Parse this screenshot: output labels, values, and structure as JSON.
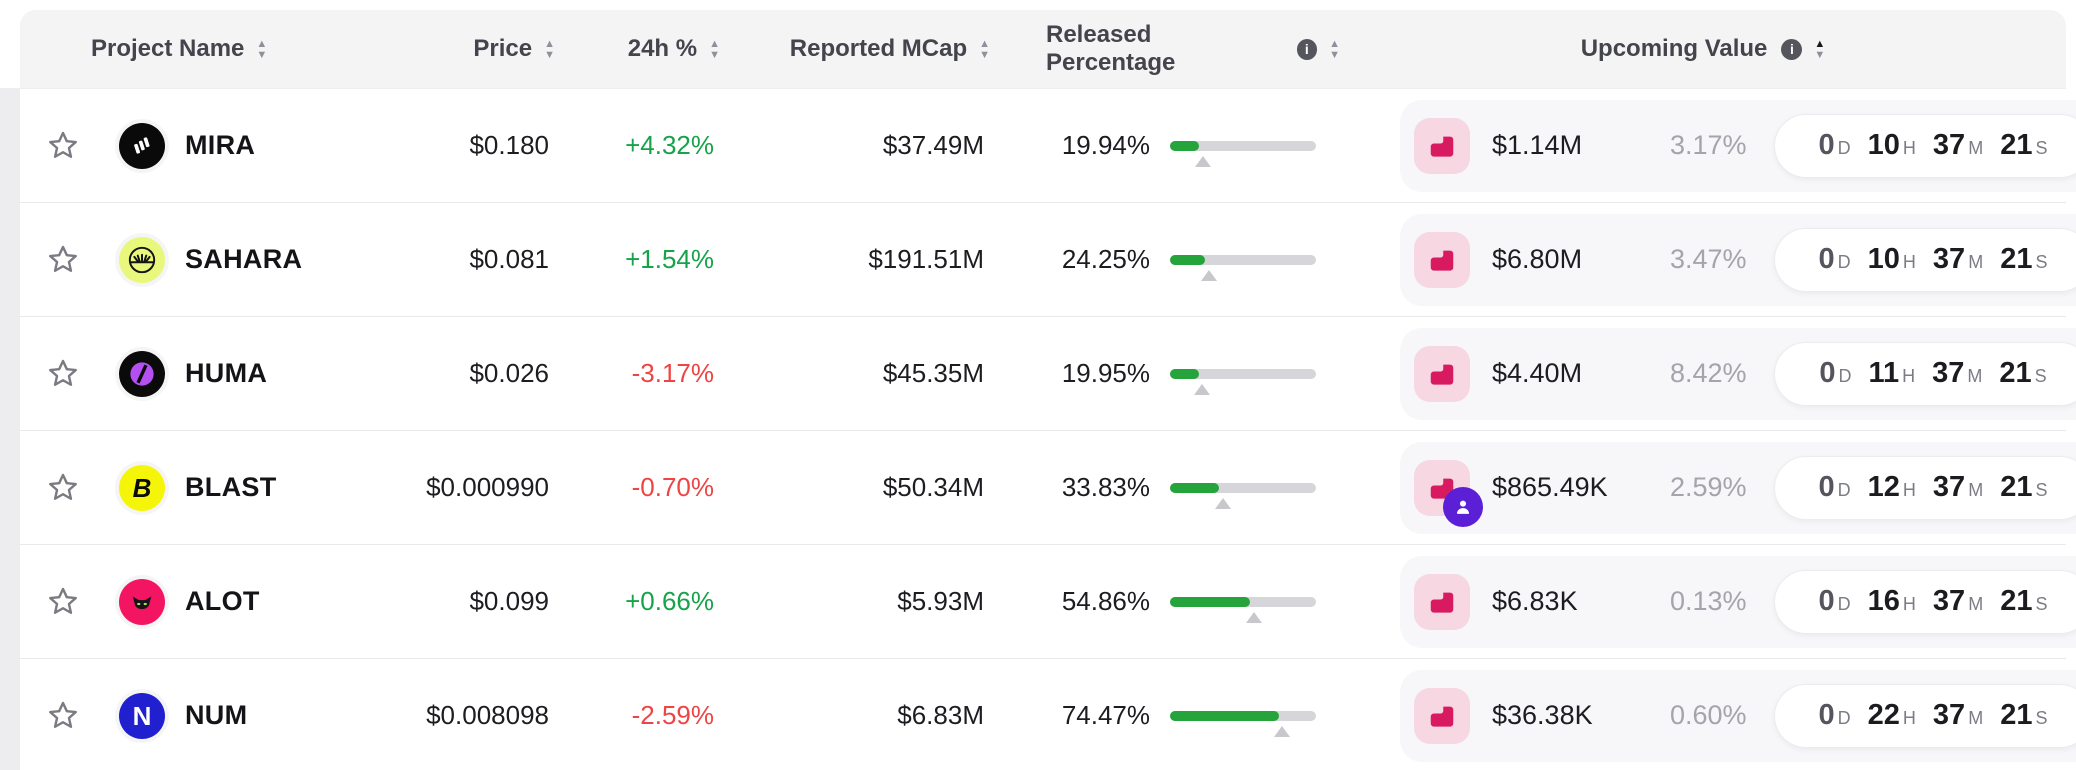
{
  "header": {
    "columns": {
      "project": {
        "label": "Project Name"
      },
      "price": {
        "label": "Price"
      },
      "change": {
        "label": "24h %"
      },
      "mcap": {
        "label": "Reported MCap"
      },
      "released": {
        "label": "Released Percentage"
      },
      "upcoming": {
        "label": "Upcoming Value",
        "sort_active": "asc"
      }
    },
    "sort_icon": {
      "up": "▲",
      "down": "▼"
    },
    "info_icon": "i"
  },
  "timer_units": {
    "d": "D",
    "h": "H",
    "m": "M",
    "s": "S"
  },
  "colors": {
    "positive": "#16a34a",
    "negative": "#ef4444",
    "bar_fill": "#25a43b",
    "unlock_icon": "#d81b60",
    "unlock_icon_bg": "#f6d7e2",
    "person_badge": "#5b1fd6",
    "header_bg": "#f4f4f5"
  },
  "rows": [
    {
      "name": "MIRA",
      "logo": "mira",
      "logo_bg": "#0a0a0a",
      "price": "$0.180",
      "change": "+4.32%",
      "change_dir": "up",
      "mcap": "$37.49M",
      "released_pct": "19.94%",
      "released_num": 19.94,
      "marker_num": 22.3,
      "unlock_icon": "chart-step",
      "badge": null,
      "value": "$1.14M",
      "value_pct": "3.17%",
      "timer": {
        "d": "0",
        "h": "10",
        "m": "37",
        "s": "21"
      }
    },
    {
      "name": "SAHARA",
      "logo": "sahara",
      "logo_bg": "#e9f77d",
      "price": "$0.081",
      "change": "+1.54%",
      "change_dir": "up",
      "mcap": "$191.51M",
      "released_pct": "24.25%",
      "released_num": 24.25,
      "marker_num": 26.8,
      "unlock_icon": "chart-step",
      "badge": null,
      "value": "$6.80M",
      "value_pct": "3.47%",
      "timer": {
        "d": "0",
        "h": "10",
        "m": "37",
        "s": "21"
      }
    },
    {
      "name": "HUMA",
      "logo": "huma",
      "logo_bg": "#0a0a0a",
      "price": "$0.026",
      "change": "-3.17%",
      "change_dir": "down",
      "mcap": "$45.35M",
      "released_pct": "19.95%",
      "released_num": 19.95,
      "marker_num": 22.2,
      "unlock_icon": "chart-step",
      "badge": null,
      "value": "$4.40M",
      "value_pct": "8.42%",
      "timer": {
        "d": "0",
        "h": "11",
        "m": "37",
        "s": "21"
      }
    },
    {
      "name": "BLAST",
      "logo": "blast",
      "logo_bg": "#f5f50a",
      "price": "$0.000990",
      "change": "-0.70%",
      "change_dir": "down",
      "mcap": "$50.34M",
      "released_pct": "33.83%",
      "released_num": 33.83,
      "marker_num": 36.2,
      "unlock_icon": "chart-step",
      "badge": "person",
      "value": "$865.49K",
      "value_pct": "2.59%",
      "timer": {
        "d": "0",
        "h": "12",
        "m": "37",
        "s": "21"
      }
    },
    {
      "name": "ALOT",
      "logo": "alot",
      "logo_bg": "#f41562",
      "price": "$0.099",
      "change": "+0.66%",
      "change_dir": "up",
      "mcap": "$5.93M",
      "released_pct": "54.86%",
      "released_num": 54.86,
      "marker_num": 57.2,
      "unlock_icon": "chart-step",
      "badge": null,
      "value": "$6.83K",
      "value_pct": "0.13%",
      "timer": {
        "d": "0",
        "h": "16",
        "m": "37",
        "s": "21"
      }
    },
    {
      "name": "NUM",
      "logo": "num",
      "logo_bg": "#2020cf",
      "price": "$0.008098",
      "change": "-2.59%",
      "change_dir": "down",
      "mcap": "$6.83M",
      "released_pct": "74.47%",
      "released_num": 74.47,
      "marker_num": 76.8,
      "unlock_icon": "chart-step",
      "badge": null,
      "value": "$36.38K",
      "value_pct": "0.60%",
      "timer": {
        "d": "0",
        "h": "22",
        "m": "37",
        "s": "21"
      }
    }
  ]
}
